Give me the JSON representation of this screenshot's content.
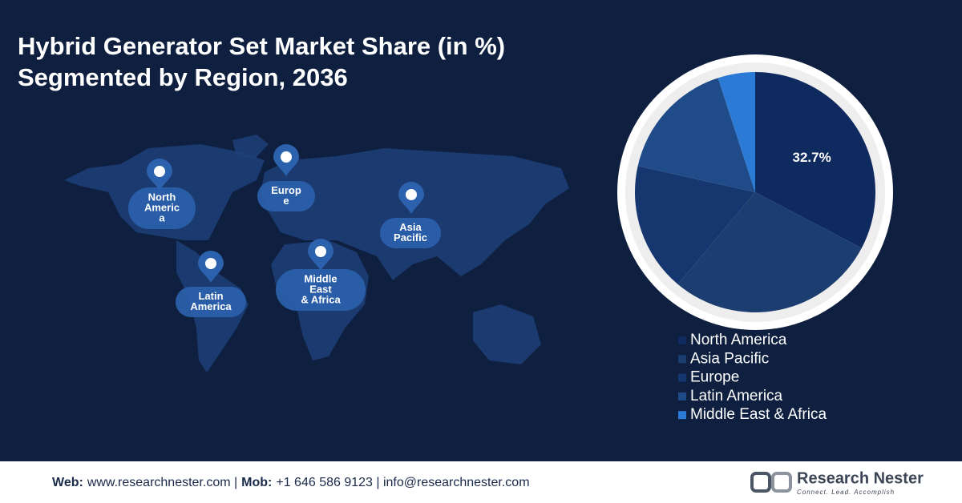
{
  "chart_data": {
    "type": "pie",
    "title": [
      "Hybrid Generator Set Market Share (in %)",
      "Segmented by Region, 2036"
    ],
    "categories": [
      "North America",
      "Asia Pacific",
      "Europe",
      "Latin America",
      "Middle East & Africa"
    ],
    "values": [
      32.7,
      28.4,
      17.4,
      16.5,
      5.0
    ],
    "value_labels": [
      "32.7%",
      null,
      null,
      null,
      null
    ],
    "colors": [
      "#0f2a5e",
      "#1b3d70",
      "#163670",
      "#1f4c88",
      "#2b7bd6"
    ],
    "legend": "bottom"
  },
  "map": {
    "regions": [
      {
        "lines": [
          "North",
          "Americ",
          "a"
        ]
      },
      {
        "lines": [
          "Europ",
          "e"
        ]
      },
      {
        "lines": [
          "Asia",
          "Pacific"
        ]
      },
      {
        "lines": [
          "Latin",
          "America"
        ]
      },
      {
        "lines": [
          "Middle",
          "East",
          "& Africa"
        ]
      }
    ]
  },
  "footer": {
    "contact": [
      "Web:",
      "www.researchnester.com |",
      "Mob:",
      "+1 646 586 9123 | info@researchnester.com"
    ],
    "brand": "Research Nester",
    "tagline": "Connect. Lead. Accomplish"
  }
}
